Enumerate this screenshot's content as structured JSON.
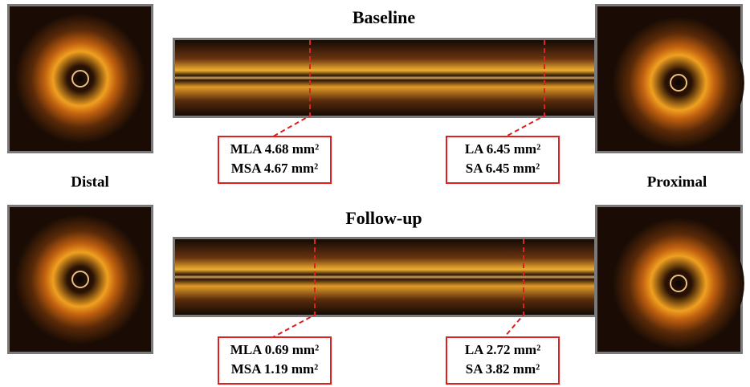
{
  "panels": [
    {
      "title": "Baseline",
      "annotations": [
        [
          "MLA 4.68 mm²",
          "MSA 4.67 mm²"
        ],
        [
          "LA 6.45 mm²",
          "SA 6.45 mm²"
        ]
      ]
    },
    {
      "title": "Follow-up",
      "annotations": [
        [
          "MLA 0.69 mm²",
          "MSA 1.19 mm²"
        ],
        [
          "LA 2.72 mm²",
          "SA 3.82 mm²"
        ]
      ]
    }
  ],
  "side_labels": [
    "Distal",
    "Proximal"
  ]
}
